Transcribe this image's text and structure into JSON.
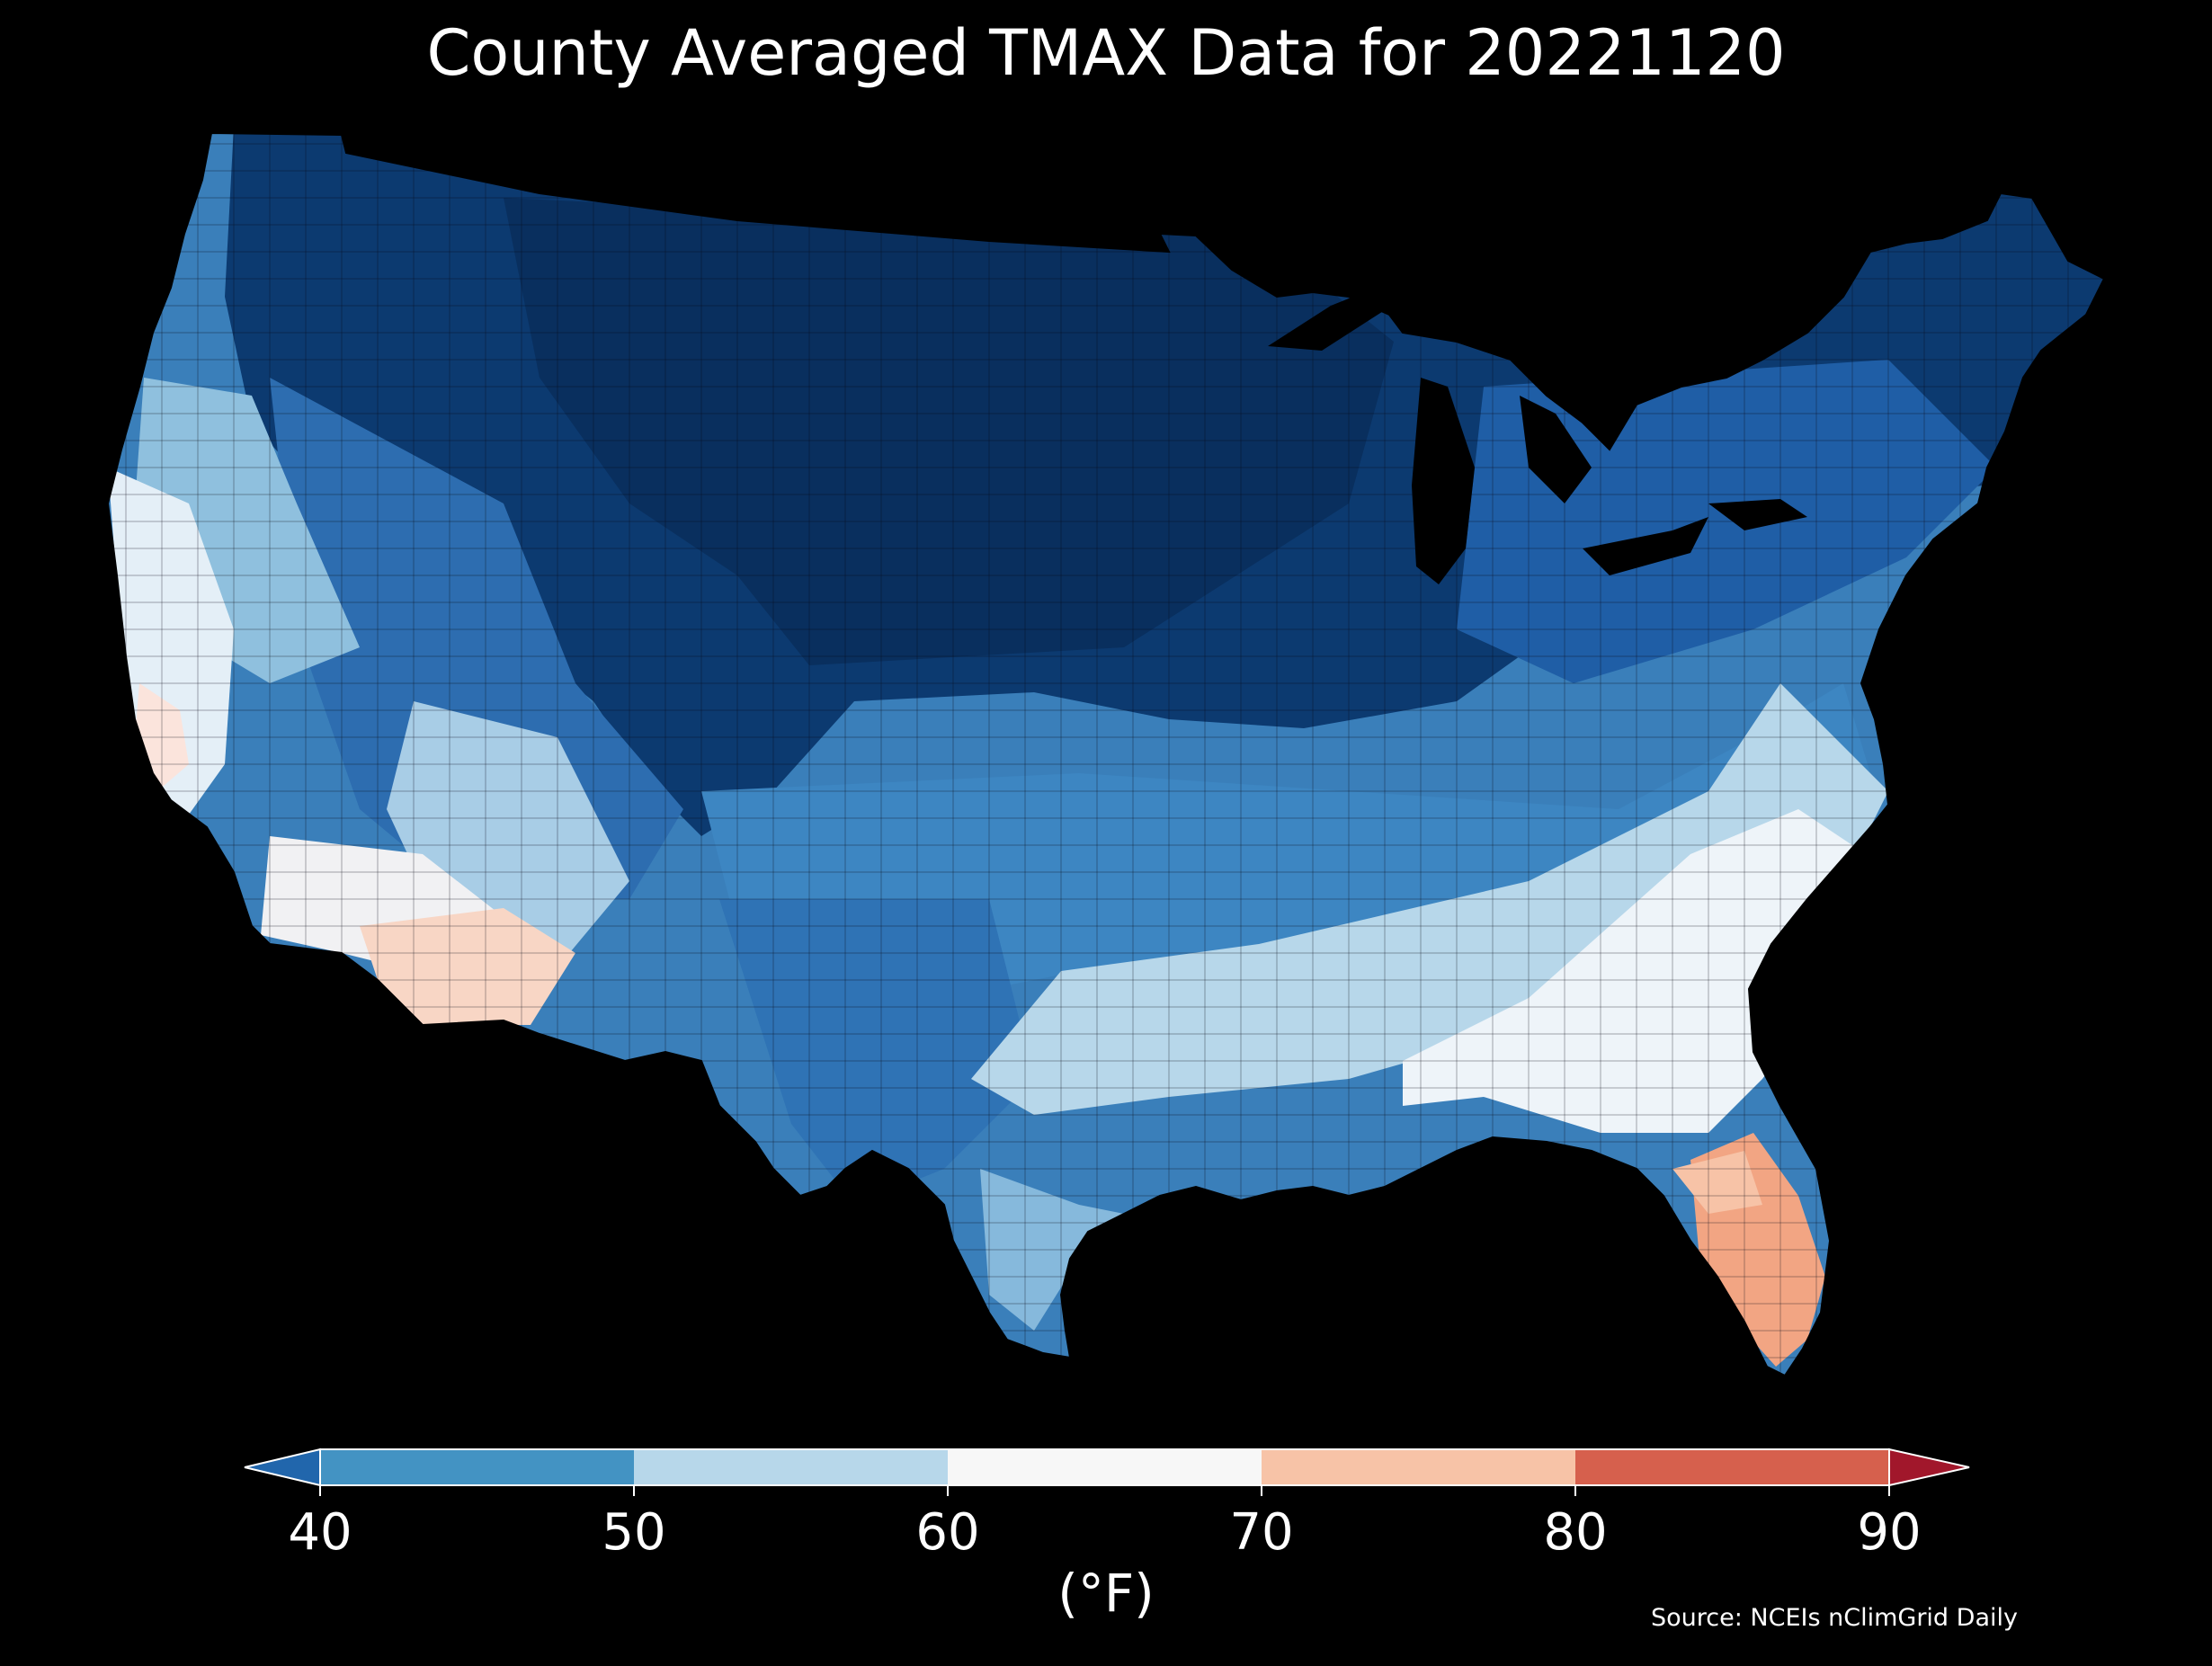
{
  "title": "County Averaged TMAX Data for 20221120",
  "colorbar": {
    "label": "(°F)",
    "ticks": [
      "40",
      "50",
      "60",
      "70",
      "80",
      "90"
    ],
    "bins": [
      {
        "range": "<40",
        "color": "#2166ac"
      },
      {
        "range": "40-50",
        "color": "#4393c3"
      },
      {
        "range": "50-60",
        "color": "#b7d7ea"
      },
      {
        "range": "60-70",
        "color": "#f7f7f7"
      },
      {
        "range": "70-80",
        "color": "#f7c3a7"
      },
      {
        "range": "80-90",
        "color": "#d6604d"
      },
      {
        "range": ">90",
        "color": "#a1172b"
      }
    ]
  },
  "source": "Source: NCEIs nClimGrid Daily",
  "map": {
    "region": "Contiguous United States counties",
    "variable": "TMAX",
    "date": "20221120",
    "pattern": "Coldest (below 40°F) across the northern Plains, Rockies, Upper Midwest and Great Lakes; 40-50°F across the central Plains, Texas, Ohio Valley and Northeast; 50-60°F in the Southeast and coastal Texas; 60-70°F along coastal California and the southern Atlantic coast; 70-80°F in southern Arizona and southern Florida."
  }
}
